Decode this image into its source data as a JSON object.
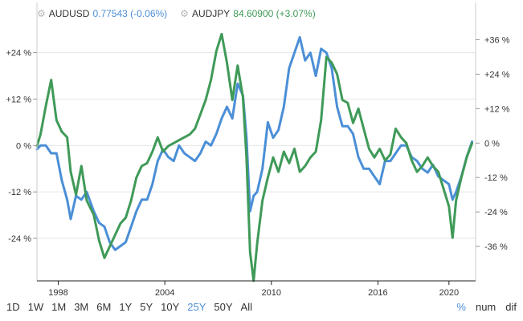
{
  "legend": [
    {
      "symbol": "AUDUSD",
      "value": "0.77543 (-0.06%)",
      "color": "#4b8fd6",
      "icon": "gear-icon"
    },
    {
      "symbol": "AUDJPY",
      "value": "84.60900 (+3.07%)",
      "color": "#3f9a58",
      "icon": "gear-icon"
    }
  ],
  "toolbar": {
    "ranges": [
      "1D",
      "1W",
      "1M",
      "3M",
      "6M",
      "1Y",
      "5Y",
      "10Y",
      "25Y",
      "50Y",
      "All"
    ],
    "active_range": "25Y",
    "modes": [
      "%",
      "num",
      "dif"
    ],
    "active_mode": "%"
  },
  "chart_data": {
    "type": "line",
    "x_ticks": [
      "1998",
      "2004",
      "2010",
      "2016",
      "2020"
    ],
    "x_tick_years": [
      1998,
      2004,
      2010,
      2016,
      2020
    ],
    "xlim": [
      1996.8,
      2021.5
    ],
    "left_axis": {
      "ticks": [
        "+24 %",
        "+12 %",
        "0 %",
        "-12 %",
        "-24 %"
      ],
      "values": [
        24,
        12,
        0,
        -12,
        -24
      ],
      "range": [
        -35,
        37
      ]
    },
    "right_axis": {
      "ticks": [
        "+36 %",
        "+24 %",
        "+12 %",
        "0 %",
        "-12 %",
        "-24 %",
        "-36 %"
      ],
      "values": [
        36,
        24,
        12,
        0,
        -12,
        -24,
        -36
      ],
      "range": [
        -48,
        49
      ]
    },
    "grid": true,
    "series": [
      {
        "name": "AUDUSD",
        "color": "#4b8fd6",
        "axis": "left",
        "x": [
          1996.8,
          1997.0,
          1997.3,
          1997.6,
          1997.9,
          1998.2,
          1998.5,
          1998.7,
          1999.0,
          1999.3,
          1999.6,
          2000.0,
          2000.3,
          2000.6,
          2000.9,
          2001.2,
          2001.5,
          2001.8,
          2002.1,
          2002.4,
          2002.7,
          2003.0,
          2003.3,
          2003.6,
          2003.9,
          2004.2,
          2004.5,
          2004.8,
          2005.1,
          2005.4,
          2005.7,
          2006.0,
          2006.3,
          2006.6,
          2006.9,
          2007.2,
          2007.5,
          2007.8,
          2008.1,
          2008.4,
          2008.6,
          2008.8,
          2009.0,
          2009.2,
          2009.5,
          2009.8,
          2010.1,
          2010.4,
          2010.7,
          2011.0,
          2011.3,
          2011.6,
          2011.9,
          2012.2,
          2012.5,
          2012.8,
          2013.1,
          2013.4,
          2013.7,
          2014.0,
          2014.3,
          2014.6,
          2014.9,
          2015.2,
          2015.5,
          2015.8,
          2016.1,
          2016.4,
          2016.7,
          2017.0,
          2017.3,
          2017.6,
          2017.9,
          2018.2,
          2018.5,
          2018.8,
          2019.1,
          2019.4,
          2019.7,
          2020.0,
          2020.2,
          2020.4,
          2020.7,
          2021.0,
          2021.3
        ],
        "y": [
          -1,
          0,
          0,
          -2,
          -2,
          -9,
          -14,
          -19,
          -13,
          -14,
          -12,
          -17,
          -20,
          -21,
          -25,
          -27,
          -26,
          -25,
          -21,
          -17,
          -14,
          -14,
          -10,
          -4,
          -1,
          -3,
          -4,
          0,
          -2,
          -3,
          -4,
          -2,
          1,
          0,
          3,
          7,
          10,
          7,
          16,
          13,
          2,
          -17,
          -13,
          -12,
          -6,
          6,
          2,
          4,
          10,
          20,
          24,
          28,
          22,
          24,
          18,
          25,
          24,
          20,
          10,
          5,
          5,
          3,
          -3,
          -6,
          -6,
          -8,
          -10,
          -4,
          -4,
          -2,
          0,
          0,
          -3,
          -4,
          -6,
          -7,
          -5,
          -8,
          -9,
          -10,
          -14,
          -12,
          -8,
          -3,
          1
        ]
      },
      {
        "name": "AUDJPY",
        "color": "#3f9a58",
        "axis": "right",
        "x": [
          1996.8,
          1997.0,
          1997.3,
          1997.6,
          1997.9,
          1998.2,
          1998.5,
          1998.7,
          1999.0,
          1999.3,
          1999.6,
          2000.0,
          2000.3,
          2000.6,
          2000.9,
          2001.2,
          2001.5,
          2001.8,
          2002.1,
          2002.4,
          2002.7,
          2003.0,
          2003.3,
          2003.6,
          2003.9,
          2004.2,
          2004.5,
          2004.8,
          2005.1,
          2005.4,
          2005.7,
          2006.0,
          2006.3,
          2006.6,
          2006.9,
          2007.2,
          2007.5,
          2007.8,
          2008.1,
          2008.4,
          2008.6,
          2008.8,
          2009.0,
          2009.2,
          2009.5,
          2009.8,
          2010.1,
          2010.4,
          2010.7,
          2011.0,
          2011.3,
          2011.6,
          2011.9,
          2012.2,
          2012.5,
          2012.8,
          2013.1,
          2013.4,
          2013.7,
          2014.0,
          2014.3,
          2014.6,
          2014.9,
          2015.2,
          2015.5,
          2015.8,
          2016.1,
          2016.4,
          2016.7,
          2017.0,
          2017.3,
          2017.6,
          2017.9,
          2018.2,
          2018.5,
          2018.8,
          2019.1,
          2019.4,
          2019.7,
          2020.0,
          2020.2,
          2020.4,
          2020.7,
          2021.0,
          2021.3
        ],
        "y": [
          -1,
          3,
          13,
          22,
          8,
          4,
          2,
          -10,
          -18,
          -8,
          -20,
          -25,
          -34,
          -40,
          -36,
          -32,
          -28,
          -26,
          -20,
          -12,
          -8,
          -7,
          -3,
          2,
          -3,
          -1,
          0,
          1,
          2,
          3,
          5,
          10,
          15,
          22,
          32,
          38,
          28,
          15,
          27,
          16,
          -5,
          -38,
          -48,
          -35,
          -20,
          -12,
          -5,
          -10,
          -3,
          -7,
          -2,
          -10,
          -8,
          -5,
          -3,
          8,
          30,
          28,
          24,
          15,
          14,
          7,
          12,
          5,
          -2,
          -5,
          -2,
          -6,
          -4,
          5,
          2,
          0,
          -6,
          -10,
          -8,
          -5,
          -8,
          -10,
          -16,
          -22,
          -33,
          -20,
          -12,
          -5,
          0
        ]
      }
    ]
  }
}
